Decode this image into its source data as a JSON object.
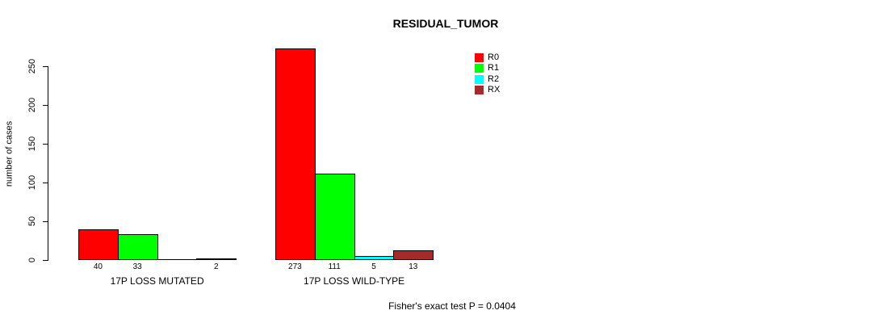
{
  "chart_data": {
    "type": "bar",
    "title": "RESIDUAL_TUMOR",
    "xlabel": "",
    "ylabel": "number of cases",
    "categories": [
      "17P LOSS MUTATED",
      "17P LOSS WILD-TYPE"
    ],
    "series": [
      {
        "name": "R0",
        "color": "#ff0000",
        "values": [
          40,
          273
        ]
      },
      {
        "name": "R1",
        "color": "#00ff00",
        "values": [
          33,
          111
        ]
      },
      {
        "name": "R2",
        "color": "#00ffff",
        "values": [
          0,
          5
        ]
      },
      {
        "name": "RX",
        "color": "#a52a2a",
        "values": [
          2,
          13
        ]
      }
    ],
    "bar_value_labels": [
      [
        "40",
        "33",
        "",
        "2"
      ],
      [
        "273",
        "111",
        "5",
        "13"
      ]
    ],
    "yticks": [
      0,
      50,
      100,
      150,
      200,
      250
    ],
    "ylim": [
      0,
      280
    ],
    "grid": false,
    "legend_position": "top-right-inside",
    "legend_entries": [
      "R0",
      "R1",
      "R2",
      "RX"
    ],
    "annotation": "Fisher's exact test P = 0.0404",
    "bar_border_color": "#000000"
  }
}
